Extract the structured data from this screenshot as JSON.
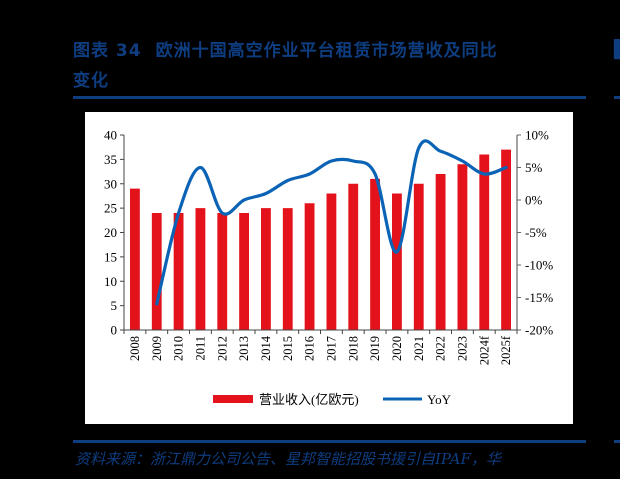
{
  "header": {
    "figure_label": "图表 34",
    "title": "欧洲十国高空作业平台租赁市场营收及同比变化",
    "title_line1": "欧洲十国高空作业平台租赁市场营收及同比",
    "title_line2": "变化"
  },
  "footer": {
    "source": "资料来源：浙江鼎力公司公告、星邦智能招股书援引自IPAF，华"
  },
  "colors": {
    "title_blue": "#0e3d80",
    "bar_red": "#e3121b",
    "line_blue": "#0b63b6"
  },
  "chart_data": {
    "type": "bar+line",
    "title": "欧洲十国高空作业平台租赁市场营收及同比变化",
    "categories": [
      "2008",
      "2009",
      "2010",
      "2011",
      "2012",
      "2013",
      "2014",
      "2015",
      "2016",
      "2017",
      "2018",
      "2019",
      "2020",
      "2021",
      "2022",
      "2023",
      "2024f",
      "2025f"
    ],
    "series": [
      {
        "name": "营业收入(亿欧元)",
        "type": "bar",
        "axis": "left",
        "values": [
          29,
          24,
          24,
          25,
          24,
          24,
          25,
          25,
          26,
          28,
          30,
          31,
          28,
          30,
          32,
          34,
          36,
          37
        ]
      },
      {
        "name": "YoY",
        "type": "line",
        "axis": "right",
        "unit": "%",
        "values": [
          null,
          -16,
          -2,
          5,
          -2,
          0,
          1,
          3,
          4,
          6,
          6,
          4,
          -8,
          8,
          7.5,
          6,
          4,
          5
        ]
      }
    ],
    "left_axis": {
      "ylim": [
        0,
        40
      ],
      "ticks": [
        "0",
        "5",
        "10",
        "15",
        "20",
        "25",
        "30",
        "35",
        "40"
      ]
    },
    "right_axis": {
      "ylim": [
        -20,
        10
      ],
      "ticks": [
        "-20%",
        "-15%",
        "-10%",
        "-5%",
        "0%",
        "5%",
        "10%"
      ]
    },
    "legend": {
      "position": "bottom",
      "entries": [
        "营业收入(亿欧元)",
        "YoY"
      ]
    },
    "grid": false
  }
}
